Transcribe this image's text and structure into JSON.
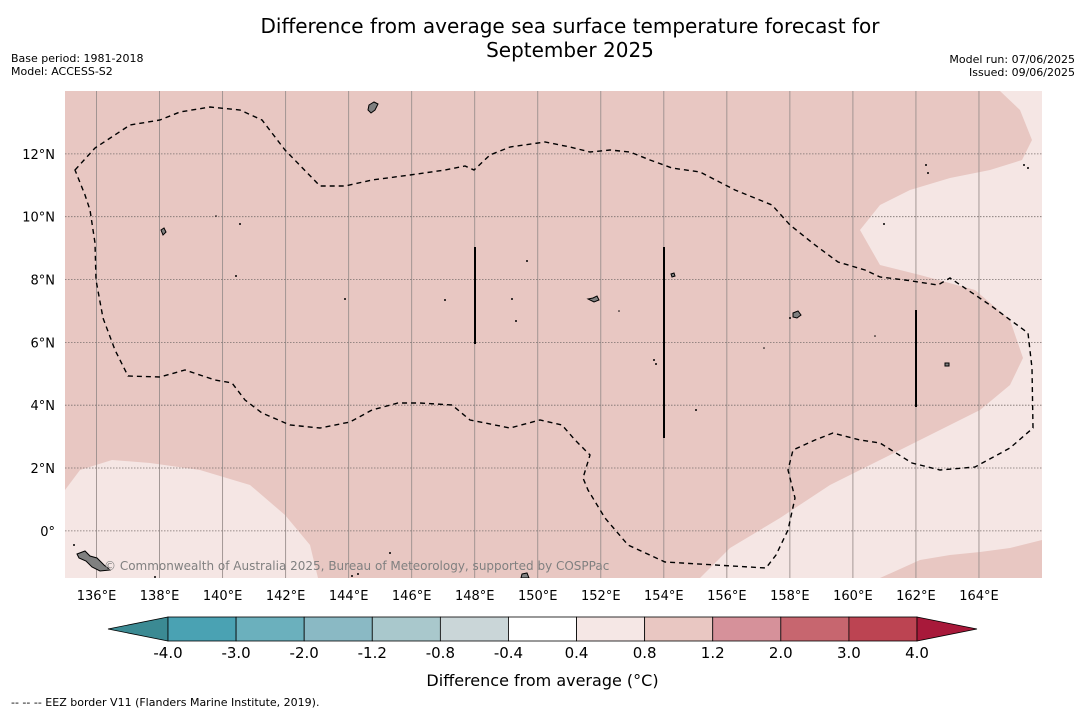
{
  "title_line1": "Difference from average sea surface temperature forecast for",
  "title_line2": "September 2025",
  "meta_left": {
    "base_period": "Base period: 1981-2018",
    "model": "Model: ACCESS-S2"
  },
  "meta_right": {
    "model_run": "Model run: 07/06/2025",
    "issued": "Issued: 09/06/2025"
  },
  "map": {
    "lon_ticks": [
      "136°E",
      "138°E",
      "140°E",
      "142°E",
      "144°E",
      "146°E",
      "148°E",
      "150°E",
      "152°E",
      "154°E",
      "156°E",
      "158°E",
      "160°E",
      "162°E",
      "164°E"
    ],
    "lat_ticks": [
      "12°N",
      "10°N",
      "8°N",
      "6°N",
      "4°N",
      "2°N",
      "0°"
    ],
    "lon_range": [
      135,
      166
    ],
    "lat_range": [
      -1.5,
      14
    ],
    "watermark": "© Commonwealth of Australia 2025, Bureau of Meteorology, supported by COSPPac",
    "colors": {
      "anom_0_8_1_2": "#e8c7c2",
      "anom_0_4_0_8": "#f5e6e4",
      "land": "#808080"
    }
  },
  "colorbar": {
    "labels": [
      "-4.0",
      "-3.0",
      "-2.0",
      "-1.2",
      "-0.8",
      "-0.4",
      "0.4",
      "0.8",
      "1.2",
      "2.0",
      "3.0",
      "4.0"
    ],
    "colors": [
      "#4aa2b3",
      "#6bb0bd",
      "#8ab9c4",
      "#a9c8cc",
      "#cad6d8",
      "#ffffff",
      "#f5e7e5",
      "#e9c7c2",
      "#d6919a",
      "#c7666f",
      "#bc4452"
    ],
    "under_color": "#3b8a93",
    "over_color": "#a8193a",
    "label": "Difference from average (°C)"
  },
  "footnote": "--  --  -- EEZ border V11 (Flanders Marine Institute, 2019)."
}
